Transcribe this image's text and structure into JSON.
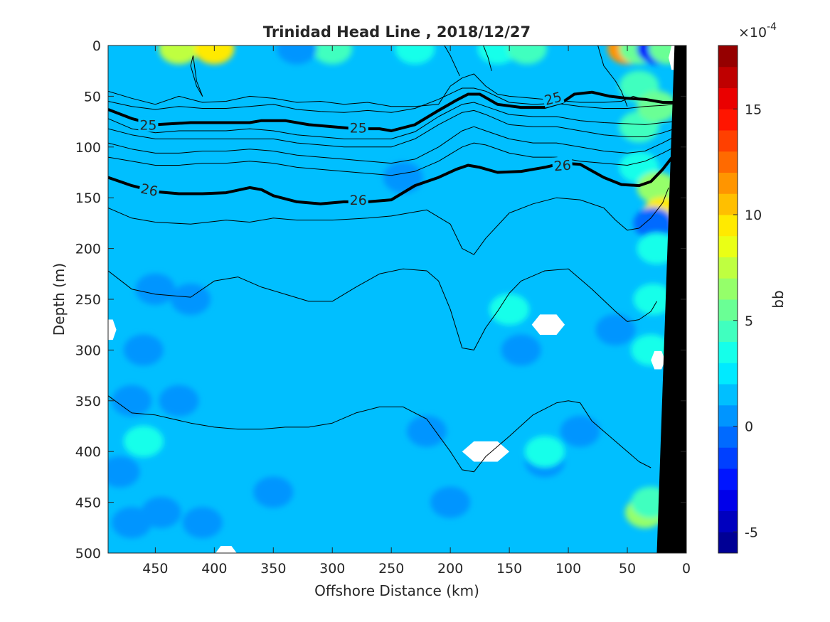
{
  "chart_data": {
    "type": "heatmap",
    "title": "Trinidad Head Line , 2018/12/27",
    "xlabel": "Offshore Distance (km)",
    "ylabel": "Depth (m)",
    "xlim": [
      490,
      0
    ],
    "ylim": [
      500,
      0
    ],
    "x_reversed": true,
    "y_reversed": true,
    "xticks": [
      450,
      400,
      350,
      300,
      250,
      200,
      150,
      100,
      50,
      0
    ],
    "yticks": [
      0,
      50,
      100,
      150,
      200,
      250,
      300,
      350,
      400,
      450,
      500
    ],
    "colorbar": {
      "label": "bb",
      "exponent": "×10^-4",
      "exponent_text": "×10",
      "exponent_power": "-4",
      "range": [
        -6,
        18
      ],
      "ticks": [
        -5,
        0,
        5,
        10,
        15
      ],
      "levels": 24,
      "colormap": "jet"
    },
    "background_level": 1.3,
    "features": [
      {
        "x": 430,
        "y": 3,
        "value": 7
      },
      {
        "x": 400,
        "y": 3,
        "value": 9
      },
      {
        "x": 300,
        "y": 3,
        "value": 4
      },
      {
        "x": 330,
        "y": 3,
        "value": 0
      },
      {
        "x": 230,
        "y": 3,
        "value": 3
      },
      {
        "x": 160,
        "y": 3,
        "value": 3
      },
      {
        "x": 135,
        "y": 3,
        "value": 4
      },
      {
        "x": 50,
        "y": 3,
        "value": 11
      },
      {
        "x": 40,
        "y": 3,
        "value": 5
      },
      {
        "x": 25,
        "y": 3,
        "value": -3
      },
      {
        "x": 15,
        "y": 3,
        "value": 5
      },
      {
        "x": 40,
        "y": 40,
        "value": 4
      },
      {
        "x": 40,
        "y": 80,
        "value": 4
      },
      {
        "x": 25,
        "y": 60,
        "value": 5
      },
      {
        "x": 40,
        "y": 120,
        "value": 3
      },
      {
        "x": 25,
        "y": 140,
        "value": 6
      },
      {
        "x": 20,
        "y": 165,
        "value": 9
      },
      {
        "x": 28,
        "y": 175,
        "value": -1
      },
      {
        "x": 25,
        "y": 200,
        "value": 3
      },
      {
        "x": 28,
        "y": 250,
        "value": 3
      },
      {
        "x": 30,
        "y": 300,
        "value": 3
      },
      {
        "x": 35,
        "y": 460,
        "value": 6
      },
      {
        "x": 30,
        "y": 450,
        "value": 4
      },
      {
        "x": 460,
        "y": 300,
        "value": 0
      },
      {
        "x": 470,
        "y": 350,
        "value": 0
      },
      {
        "x": 480,
        "y": 420,
        "value": 0
      },
      {
        "x": 470,
        "y": 470,
        "value": 0
      },
      {
        "x": 445,
        "y": 460,
        "value": 0
      },
      {
        "x": 430,
        "y": 350,
        "value": 0
      },
      {
        "x": 220,
        "y": 380,
        "value": 0
      },
      {
        "x": 200,
        "y": 450,
        "value": 0
      },
      {
        "x": 350,
        "y": 440,
        "value": 0
      },
      {
        "x": 410,
        "y": 470,
        "value": 0
      },
      {
        "x": 90,
        "y": 380,
        "value": 0
      },
      {
        "x": 120,
        "y": 410,
        "value": 0
      },
      {
        "x": 140,
        "y": 300,
        "value": 0
      },
      {
        "x": 240,
        "y": 130,
        "value": 0
      },
      {
        "x": 60,
        "y": 280,
        "value": 0
      },
      {
        "x": 450,
        "y": 240,
        "value": 0
      },
      {
        "x": 420,
        "y": 250,
        "value": 0
      },
      {
        "x": 120,
        "y": 400,
        "value": 3
      },
      {
        "x": 150,
        "y": 260,
        "value": 3
      },
      {
        "x": 460,
        "y": 390,
        "value": 3
      }
    ],
    "missing_patches": [
      {
        "x": 117,
        "y": 275,
        "rx": 14,
        "ry": 10
      },
      {
        "x": 170,
        "y": 400,
        "rx": 20,
        "ry": 10
      },
      {
        "x": 390,
        "y": 500,
        "rx": 9,
        "ry": 7
      },
      {
        "x": 489,
        "y": 280,
        "rx": 6,
        "ry": 10
      },
      {
        "x": 24,
        "y": 310,
        "rx": 6,
        "ry": 9
      },
      {
        "x": 10,
        "y": 12,
        "rx": 5,
        "ry": 12
      }
    ],
    "seafloor": [
      {
        "x": 0,
        "y": 0
      },
      {
        "x": 10,
        "y": 0
      },
      {
        "x": 25,
        "y": 500
      },
      {
        "x": 0,
        "y": 500
      }
    ],
    "contours": [
      {
        "level": null,
        "bold": false,
        "x": [
          490,
          470,
          450,
          430,
          410,
          390,
          370,
          350,
          330,
          310,
          290,
          270,
          250,
          230,
          210,
          200,
          190,
          180,
          170,
          160,
          150,
          130,
          110,
          90,
          70,
          55,
          45,
          35,
          20,
          10
        ],
        "y": [
          45,
          52,
          58,
          50,
          56,
          55,
          50,
          52,
          56,
          55,
          58,
          56,
          60,
          60,
          58,
          40,
          32,
          28,
          40,
          48,
          50,
          52,
          54,
          56,
          56,
          55,
          50,
          54,
          56,
          56
        ]
      },
      {
        "level": null,
        "bold": false,
        "x": [
          490,
          470,
          450,
          430,
          410,
          390,
          370,
          350,
          330,
          310,
          290,
          270,
          250,
          230,
          210,
          190,
          180,
          170,
          150,
          130,
          110,
          90,
          70,
          50,
          35,
          20,
          10
        ],
        "y": [
          55,
          60,
          63,
          60,
          62,
          62,
          60,
          58,
          63,
          65,
          66,
          64,
          66,
          62,
          53,
          42,
          42,
          45,
          56,
          58,
          57,
          60,
          62,
          62,
          60,
          59,
          58
        ]
      },
      {
        "level": 25,
        "bold": true,
        "x": [
          490,
          470,
          450,
          420,
          390,
          370,
          360,
          340,
          320,
          300,
          280,
          260,
          250,
          230,
          210,
          195,
          185,
          175,
          160,
          140,
          120,
          105,
          95,
          80,
          65,
          50,
          35,
          20,
          10
        ],
        "y": [
          63,
          72,
          78,
          76,
          76,
          76,
          74,
          74,
          78,
          80,
          82,
          82,
          84,
          78,
          64,
          54,
          48,
          48,
          58,
          61,
          61,
          56,
          48,
          46,
          50,
          52,
          53,
          56,
          56
        ]
      },
      {
        "level": null,
        "bold": false,
        "x": [
          490,
          470,
          450,
          430,
          410,
          390,
          370,
          350,
          330,
          310,
          290,
          270,
          250,
          230,
          210,
          190,
          180,
          170,
          150,
          130,
          110,
          90,
          70,
          50,
          35,
          20,
          10
        ],
        "y": [
          72,
          82,
          86,
          84,
          84,
          84,
          82,
          84,
          88,
          90,
          92,
          92,
          92,
          85,
          70,
          58,
          56,
          60,
          68,
          70,
          70,
          74,
          76,
          77,
          78,
          76,
          75
        ]
      },
      {
        "level": null,
        "bold": false,
        "x": [
          490,
          470,
          450,
          430,
          410,
          390,
          370,
          350,
          330,
          310,
          290,
          270,
          250,
          230,
          210,
          190,
          180,
          170,
          150,
          130,
          110,
          90,
          70,
          50,
          35,
          20,
          10
        ],
        "y": [
          82,
          88,
          92,
          92,
          92,
          92,
          92,
          92,
          96,
          98,
          100,
          100,
          100,
          92,
          78,
          66,
          64,
          68,
          78,
          80,
          80,
          84,
          88,
          90,
          90,
          86,
          82
        ]
      },
      {
        "level": null,
        "bold": false,
        "x": [
          490,
          470,
          450,
          430,
          410,
          390,
          370,
          350,
          330,
          310,
          290,
          270,
          250,
          230,
          210,
          190,
          180,
          170,
          150,
          130,
          110,
          90,
          70,
          50,
          35,
          20,
          10
        ],
        "y": [
          96,
          102,
          106,
          106,
          104,
          104,
          102,
          104,
          108,
          110,
          112,
          114,
          116,
          112,
          100,
          84,
          80,
          84,
          92,
          96,
          96,
          100,
          104,
          106,
          104,
          96,
          90
        ]
      },
      {
        "level": null,
        "bold": false,
        "x": [
          490,
          470,
          450,
          430,
          410,
          390,
          370,
          350,
          330,
          310,
          290,
          270,
          250,
          230,
          210,
          190,
          180,
          170,
          150,
          130,
          110,
          90,
          70,
          50,
          35,
          20,
          10
        ],
        "y": [
          110,
          114,
          118,
          118,
          116,
          116,
          114,
          116,
          120,
          122,
          124,
          126,
          128,
          124,
          114,
          100,
          96,
          98,
          106,
          110,
          110,
          114,
          116,
          118,
          114,
          106,
          100
        ]
      },
      {
        "level": 26,
        "bold": true,
        "x": [
          490,
          470,
          450,
          430,
          410,
          390,
          370,
          360,
          350,
          330,
          310,
          290,
          270,
          250,
          230,
          210,
          195,
          185,
          175,
          160,
          140,
          120,
          105,
          90,
          70,
          55,
          40,
          30,
          20,
          12
        ],
        "y": [
          130,
          138,
          144,
          146,
          146,
          145,
          140,
          142,
          148,
          154,
          156,
          154,
          154,
          152,
          138,
          130,
          122,
          118,
          120,
          125,
          124,
          120,
          116,
          117,
          130,
          137,
          138,
          134,
          122,
          110
        ]
      },
      {
        "level": null,
        "bold": false,
        "x": [
          490,
          470,
          450,
          420,
          390,
          370,
          350,
          330,
          300,
          270,
          250,
          220,
          200,
          190,
          180,
          170,
          150,
          130,
          110,
          90,
          70,
          60,
          50,
          40,
          30,
          20,
          15
        ],
        "y": [
          160,
          170,
          174,
          176,
          172,
          174,
          170,
          172,
          172,
          170,
          168,
          162,
          176,
          200,
          206,
          190,
          165,
          156,
          150,
          152,
          160,
          172,
          182,
          180,
          170,
          155,
          140
        ]
      },
      {
        "level": null,
        "bold": false,
        "x": [
          490,
          470,
          450,
          420,
          400,
          380,
          360,
          340,
          320,
          300,
          280,
          260,
          240,
          220,
          210,
          200,
          190,
          180,
          170,
          160,
          150,
          140,
          120,
          100,
          80,
          60,
          50,
          40,
          30,
          25
        ],
        "y": [
          222,
          240,
          245,
          248,
          232,
          228,
          238,
          245,
          252,
          252,
          238,
          225,
          220,
          222,
          232,
          260,
          298,
          300,
          278,
          262,
          244,
          232,
          222,
          220,
          240,
          262,
          272,
          270,
          262,
          252
        ]
      },
      {
        "level": null,
        "bold": false,
        "x": [
          490,
          470,
          450,
          420,
          400,
          380,
          360,
          340,
          320,
          300,
          280,
          260,
          240,
          220,
          210,
          200,
          190,
          180,
          170,
          150,
          130,
          110,
          100,
          90,
          80,
          60,
          40,
          30
        ],
        "y": [
          345,
          362,
          364,
          372,
          376,
          378,
          378,
          376,
          376,
          372,
          362,
          356,
          356,
          368,
          384,
          400,
          418,
          420,
          405,
          385,
          364,
          352,
          350,
          352,
          370,
          390,
          410,
          416
        ]
      },
      {
        "level": null,
        "bold": false,
        "x": [
          418,
          415,
          410,
          415,
          420,
          418
        ],
        "y": [
          10,
          35,
          50,
          40,
          20,
          10
        ]
      },
      {
        "level": null,
        "bold": false,
        "x": [
          205,
          200,
          196,
          194,
          192
        ],
        "y": [
          0,
          10,
          20,
          25,
          30
        ]
      },
      {
        "level": null,
        "bold": false,
        "x": [
          172,
          168,
          165
        ],
        "y": [
          0,
          12,
          25
        ]
      },
      {
        "level": null,
        "bold": false,
        "x": [
          75,
          70,
          60,
          55,
          50
        ],
        "y": [
          0,
          20,
          35,
          45,
          60
        ]
      }
    ],
    "contour_labels": [
      {
        "text": "25",
        "x": 456,
        "y": 78,
        "angle": 0
      },
      {
        "text": "25",
        "x": 278,
        "y": 81,
        "angle": 0
      },
      {
        "text": "25",
        "x": 113,
        "y": 52,
        "angle": -15
      },
      {
        "text": "26",
        "x": 455,
        "y": 142,
        "angle": 12
      },
      {
        "text": "26",
        "x": 278,
        "y": 152,
        "angle": 0
      },
      {
        "text": "26",
        "x": 105,
        "y": 118,
        "angle": -5
      }
    ]
  }
}
